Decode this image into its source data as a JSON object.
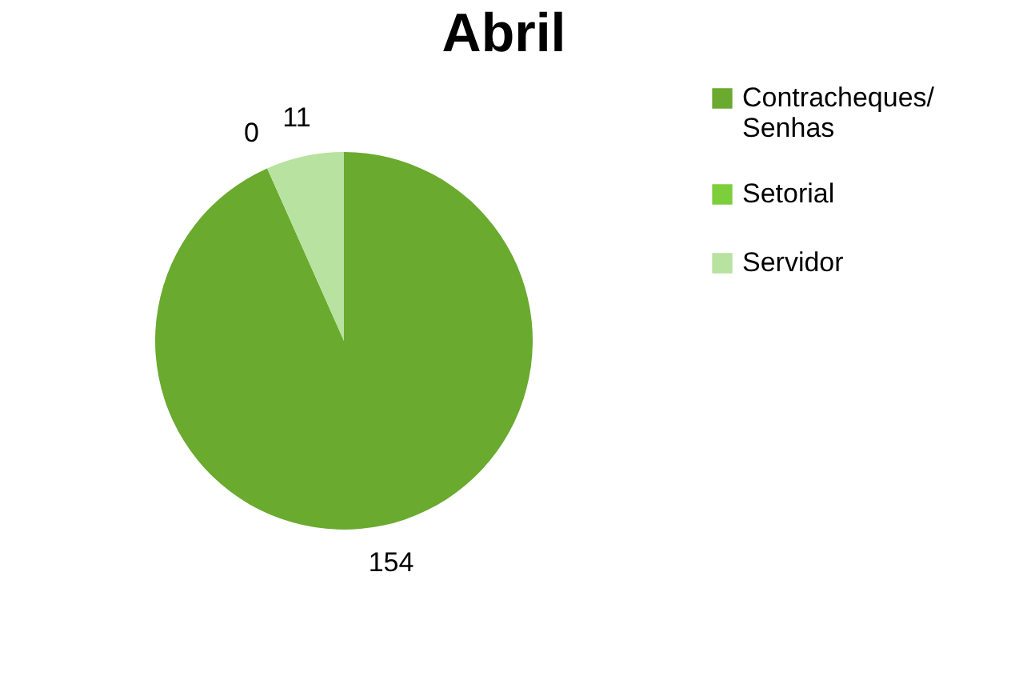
{
  "chart_data": {
    "type": "pie",
    "title": "Abril",
    "categories": [
      "Contracheques/ Senhas",
      "Setorial",
      "Servidor"
    ],
    "values": [
      154,
      0,
      11
    ],
    "colors": [
      "#6aaa2f",
      "#7ccf3b",
      "#b8e29f"
    ],
    "value_labels": [
      "154",
      "0",
      "11"
    ],
    "legend": "right"
  }
}
